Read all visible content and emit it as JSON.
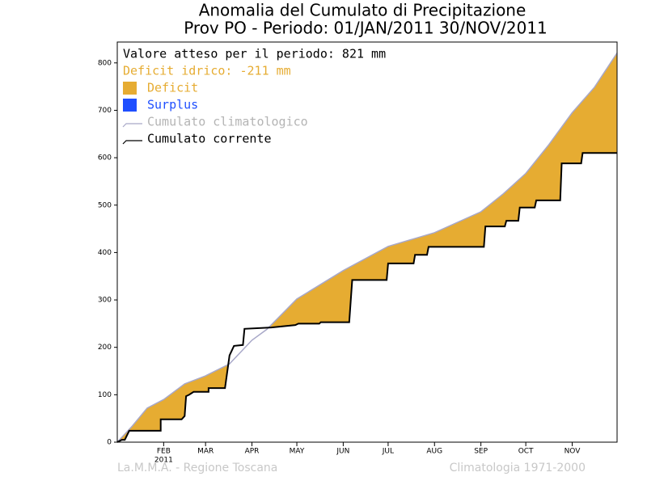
{
  "chart_data": {
    "type": "cumulative-anomaly",
    "title": "Anomalia del Cumulato di Precipitazione",
    "subtitle": "Prov PO - Periodo: 01/JAN/2011 30/NOV/2011",
    "expected_text": "Valore atteso per il periodo: 821 mm",
    "deficit_text": "Deficit idrico: -211 mm",
    "x_sublabel": "2011",
    "footer_left": "La.M.M.A. - Regione Toscana",
    "footer_right": "Climatologia 1971-2000",
    "fills": [
      {
        "name": "Deficit",
        "color": "#e6ac32"
      },
      {
        "name": "Surplus",
        "color": "#1f4fff"
      }
    ],
    "series": [
      {
        "name": "Cumulato climatologico",
        "color": "#a8a8c8",
        "x": [
          0,
          10,
          20,
          31,
          45,
          59,
          75,
          90,
          100,
          120,
          151,
          181,
          212,
          243,
          258,
          273,
          288,
          304,
          319,
          334
        ],
        "values": [
          0,
          34,
          72,
          90,
          123,
          140,
          165,
          215,
          238,
          302,
          362,
          413,
          442,
          486,
          524,
          567,
          626,
          695,
          749,
          821
        ]
      },
      {
        "name": "Cumulato corrente",
        "color": "#000000",
        "x": [
          0,
          3,
          5,
          8,
          16,
          29,
          29,
          43,
          45,
          46,
          48,
          51,
          61,
          61,
          72,
          75,
          78,
          84,
          85,
          103,
          119,
          121,
          135,
          136,
          155,
          157,
          180,
          181,
          198,
          199,
          207,
          208,
          245,
          246,
          259,
          260,
          268,
          269,
          279,
          280,
          296,
          297,
          310,
          311,
          334
        ],
        "values": [
          0,
          5,
          5,
          24,
          24,
          24,
          48,
          48,
          55,
          97,
          100,
          106,
          106,
          114,
          114,
          183,
          203,
          205,
          239,
          242,
          247,
          250,
          250,
          253,
          253,
          342,
          342,
          377,
          377,
          395,
          395,
          412,
          412,
          455,
          455,
          467,
          467,
          495,
          495,
          510,
          510,
          588,
          588,
          610,
          610
        ]
      }
    ],
    "xlim": [
      0,
      334
    ],
    "xticks": [
      {
        "value": 31,
        "label": "FEB"
      },
      {
        "value": 59,
        "label": "MAR"
      },
      {
        "value": 90,
        "label": "APR"
      },
      {
        "value": 120,
        "label": "MAY"
      },
      {
        "value": 151,
        "label": "JUN"
      },
      {
        "value": 181,
        "label": "JUL"
      },
      {
        "value": 212,
        "label": "AUG"
      },
      {
        "value": 243,
        "label": "SEP"
      },
      {
        "value": 273,
        "label": "OCT"
      },
      {
        "value": 304,
        "label": "NOV"
      }
    ],
    "ylim": [
      0,
      844
    ],
    "yticks": [
      0,
      100,
      200,
      300,
      400,
      500,
      600,
      700,
      800
    ]
  }
}
